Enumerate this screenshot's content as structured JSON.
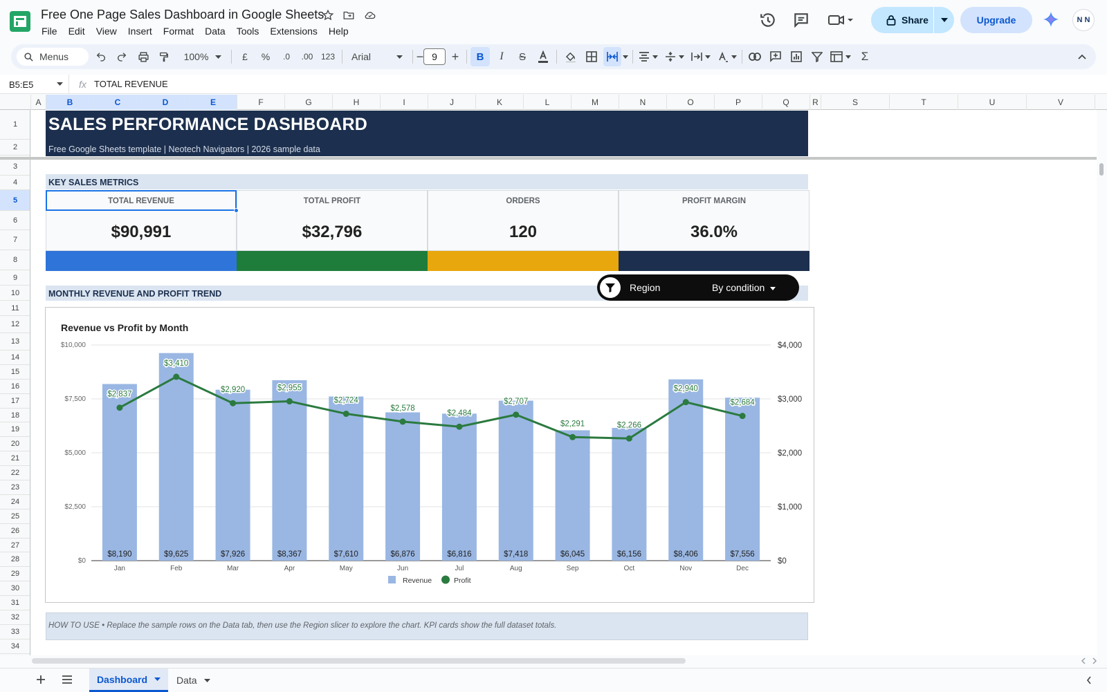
{
  "app": {
    "doc_title": "Free One Page Sales Dashboard in Google Sheets",
    "menu": [
      "File",
      "Edit",
      "View",
      "Insert",
      "Format",
      "Data",
      "Tools",
      "Extensions",
      "Help"
    ],
    "share_label": "Share",
    "upgrade_label": "Upgrade",
    "avatar_text": "N N"
  },
  "toolbar": {
    "menus_label": "Menus",
    "zoom": "100%",
    "currency": "£",
    "percent": "%",
    "decrease_decimals": ".0",
    "increase_decimals": ".00",
    "number_format": "123",
    "font": "Arial",
    "font_size": "9"
  },
  "formula_bar": {
    "name_box": "B5:E5",
    "fx": "fx",
    "content": "TOTAL REVENUE"
  },
  "columns": [
    "A",
    "B",
    "C",
    "D",
    "E",
    "F",
    "G",
    "H",
    "I",
    "J",
    "K",
    "L",
    "M",
    "N",
    "O",
    "P",
    "Q",
    "R",
    "S",
    "T",
    "U",
    "V"
  ],
  "rows": [
    "1",
    "2",
    "3",
    "4",
    "5",
    "6",
    "7",
    "8",
    "9",
    "10",
    "11",
    "12",
    "13",
    "14",
    "15",
    "16",
    "17",
    "18",
    "19",
    "20",
    "21",
    "22",
    "23",
    "24",
    "25",
    "26",
    "27",
    "28",
    "29",
    "30",
    "31",
    "32",
    "33",
    "34"
  ],
  "dashboard": {
    "title": "SALES PERFORMANCE DASHBOARD",
    "subtitle": "Free Google Sheets template  |  Neotech Navigators  |  2026 sample data",
    "kpi_section": "KEY SALES METRICS",
    "kpis": [
      {
        "label": "TOTAL REVENUE",
        "value": "$90,991",
        "color": "#2f74d8"
      },
      {
        "label": "TOTAL PROFIT",
        "value": "$32,796",
        "color": "#1f7d3b"
      },
      {
        "label": "ORDERS",
        "value": "120",
        "color": "#e8a70c"
      },
      {
        "label": "PROFIT MARGIN",
        "value": "36.0%",
        "color": "#1c2f4e"
      }
    ],
    "trend_section": "MONTHLY REVENUE AND PROFIT TREND",
    "slicer": {
      "label": "Region",
      "condition": "By condition"
    },
    "how_to": "HOW TO USE  •  Replace the sample rows on the Data tab, then use the Region slicer to explore the chart. KPI cards show the full dataset totals."
  },
  "chart_data": {
    "type": "bar",
    "title": "Revenue vs Profit by Month",
    "categories": [
      "Jan",
      "Feb",
      "Mar",
      "Apr",
      "May",
      "Jun",
      "Jul",
      "Aug",
      "Sep",
      "Oct",
      "Nov",
      "Dec"
    ],
    "series": [
      {
        "name": "Revenue",
        "type": "bar",
        "axis": "left",
        "color": "#9ab7e3",
        "values": [
          8190,
          9625,
          7926,
          8367,
          7610,
          6876,
          6816,
          7418,
          6045,
          6156,
          8406,
          7556
        ],
        "labels": [
          "$8,190",
          "$9,625",
          "$7,926",
          "$8,367",
          "$7,610",
          "$6,876",
          "$6,816",
          "$7,418",
          "$6,045",
          "$6,156",
          "$8,406",
          "$7,556"
        ]
      },
      {
        "name": "Profit",
        "type": "line",
        "axis": "right",
        "color": "#2b7a3f",
        "values": [
          2837,
          3410,
          2920,
          2955,
          2724,
          2578,
          2484,
          2707,
          2291,
          2266,
          2940,
          2684
        ],
        "labels": [
          "$2,837",
          "$3,410",
          "$2,920",
          "$2,955",
          "$2,724",
          "$2,578",
          "$2,484",
          "$2,707",
          "$2,291",
          "$2,266",
          "$2,940",
          "$2,684"
        ]
      }
    ],
    "y_left": {
      "ticks": [
        "$0",
        "$2,500",
        "$5,000",
        "$7,500",
        "$10,000"
      ],
      "ylim": [
        0,
        10000
      ]
    },
    "y_right": {
      "ticks": [
        "$0",
        "$1,000",
        "$2,000",
        "$3,000",
        "$4,000"
      ],
      "ylim": [
        0,
        4000
      ]
    },
    "legend": [
      "Revenue",
      "Profit"
    ],
    "legend_position": "bottom",
    "grid": true
  },
  "sheets": [
    {
      "name": "Dashboard",
      "active": true
    },
    {
      "name": "Data",
      "active": false
    }
  ],
  "colors": {
    "accent": "#0b57d0",
    "header_navy": "#1c2f4e",
    "selection": "#1a73e8"
  }
}
